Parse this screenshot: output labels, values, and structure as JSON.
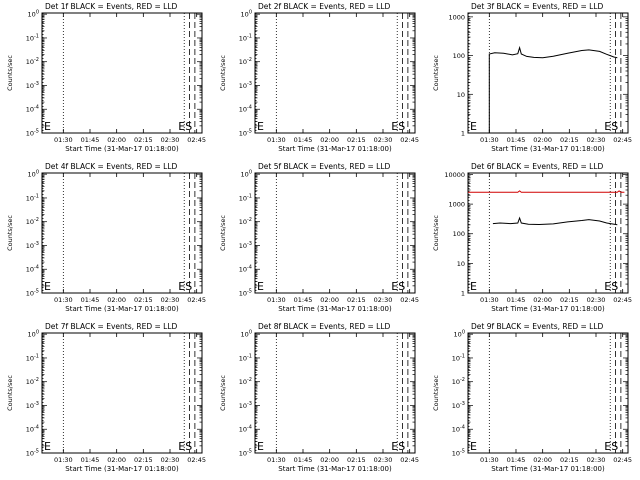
{
  "chart_data": [
    {
      "type": "line",
      "title": "Det 1f BLACK = Events, RED = LLD",
      "xlabel": "Start Time (31-Mar-17 01:18:00)",
      "ylabel": "Counts/sec",
      "yscale": "log",
      "xticks": [
        "01:30",
        "01:45",
        "02:00",
        "02:15",
        "02:30",
        "02:45"
      ],
      "yticks": [
        "10^0",
        "10^-1",
        "10^-2",
        "10^-3",
        "10^-4",
        "10^-5"
      ],
      "markers": [
        {
          "label": "E",
          "time": "01:18",
          "style": "dotted"
        },
        {
          "label": "",
          "time": "01:30",
          "style": "dotted"
        },
        {
          "label": "ES",
          "time": "02:38",
          "style": "dotted"
        },
        {
          "label": "",
          "time": "02:41",
          "style": "dashed"
        },
        {
          "label": "",
          "time": "02:44",
          "style": "dashed"
        }
      ],
      "series": []
    },
    {
      "type": "line",
      "title": "Det 2f BLACK = Events, RED = LLD",
      "xlabel": "Start Time (31-Mar-17 01:18:00)",
      "ylabel": "Counts/sec",
      "yscale": "log",
      "xticks": [
        "01:30",
        "01:45",
        "02:00",
        "02:15",
        "02:30",
        "02:45"
      ],
      "yticks": [
        "10^0",
        "10^-1",
        "10^-2",
        "10^-3",
        "10^-4",
        "10^-5"
      ],
      "markers": [
        {
          "label": "E",
          "time": "01:18",
          "style": "dotted"
        },
        {
          "label": "",
          "time": "01:30",
          "style": "dotted"
        },
        {
          "label": "ES",
          "time": "02:38",
          "style": "dotted"
        },
        {
          "label": "",
          "time": "02:41",
          "style": "dashed"
        },
        {
          "label": "",
          "time": "02:44",
          "style": "dashed"
        }
      ],
      "series": []
    },
    {
      "type": "line",
      "title": "Det 3f BLACK = Events, RED = LLD",
      "xlabel": "Start Time (31-Mar-17 01:18:00)",
      "ylabel": "Counts/sec",
      "yscale": "log",
      "xticks": [
        "01:30",
        "01:45",
        "02:00",
        "02:15",
        "02:30",
        "02:45"
      ],
      "yticks": [
        "1",
        "10",
        "100",
        "1000"
      ],
      "markers": [
        {
          "label": "E",
          "time": "01:18",
          "style": "dotted"
        },
        {
          "label": "",
          "time": "01:30",
          "style": "dotted"
        },
        {
          "label": "ES",
          "time": "02:38",
          "style": "dotted"
        },
        {
          "label": "",
          "time": "02:41",
          "style": "dashed"
        },
        {
          "label": "",
          "time": "02:44",
          "style": "dashed"
        }
      ],
      "series": [
        {
          "color": "#000000",
          "points": [
            [
              0,
              0.5
            ],
            [
              12,
              0.5
            ],
            [
              12,
              110
            ],
            [
              15,
              118
            ],
            [
              20,
              115
            ],
            [
              25,
              104
            ],
            [
              28,
              112
            ],
            [
              29,
              160
            ],
            [
              30,
              110
            ],
            [
              33,
              95
            ],
            [
              37,
              90
            ],
            [
              42,
              88
            ],
            [
              48,
              96
            ],
            [
              56,
              115
            ],
            [
              64,
              135
            ],
            [
              68,
              140
            ],
            [
              74,
              128
            ],
            [
              78,
              108
            ],
            [
              80,
              100
            ],
            [
              82,
              92
            ],
            [
              84,
              88
            ]
          ]
        }
      ]
    },
    {
      "type": "line",
      "title": "Det 4f BLACK = Events, RED = LLD",
      "xlabel": "Start Time (31-Mar-17 01:18:00)",
      "ylabel": "Counts/sec",
      "yscale": "log",
      "xticks": [
        "01:30",
        "01:45",
        "02:00",
        "02:15",
        "02:30",
        "02:45"
      ],
      "yticks": [
        "10^0",
        "10^-1",
        "10^-2",
        "10^-3",
        "10^-4",
        "10^-5"
      ],
      "markers": [
        {
          "label": "E",
          "time": "01:18",
          "style": "dotted"
        },
        {
          "label": "",
          "time": "01:30",
          "style": "dotted"
        },
        {
          "label": "ES",
          "time": "02:38",
          "style": "dotted"
        },
        {
          "label": "",
          "time": "02:41",
          "style": "dashed"
        },
        {
          "label": "",
          "time": "02:44",
          "style": "dashed"
        }
      ],
      "series": []
    },
    {
      "type": "line",
      "title": "Det 5f BLACK = Events, RED = LLD",
      "xlabel": "Start Time (31-Mar-17 01:18:00)",
      "ylabel": "Counts/sec",
      "yscale": "log",
      "xticks": [
        "01:30",
        "01:45",
        "02:00",
        "02:15",
        "02:30",
        "02:45"
      ],
      "yticks": [
        "10^0",
        "10^-1",
        "10^-2",
        "10^-3",
        "10^-4",
        "10^-5"
      ],
      "markers": [
        {
          "label": "E",
          "time": "01:18",
          "style": "dotted"
        },
        {
          "label": "",
          "time": "01:30",
          "style": "dotted"
        },
        {
          "label": "ES",
          "time": "02:38",
          "style": "dotted"
        },
        {
          "label": "",
          "time": "02:41",
          "style": "dashed"
        },
        {
          "label": "",
          "time": "02:44",
          "style": "dashed"
        }
      ],
      "series": []
    },
    {
      "type": "line",
      "title": "Det 6f BLACK = Events, RED = LLD",
      "xlabel": "Start Time (31-Mar-17 01:18:00)",
      "ylabel": "Counts/sec",
      "yscale": "log",
      "xticks": [
        "01:30",
        "01:45",
        "02:00",
        "02:15",
        "02:30",
        "02:45"
      ],
      "yticks": [
        "1",
        "10",
        "100",
        "1000",
        "10000"
      ],
      "markers": [
        {
          "label": "E",
          "time": "01:18",
          "style": "dotted"
        },
        {
          "label": "",
          "time": "01:30",
          "style": "dotted"
        },
        {
          "label": "ES",
          "time": "02:38",
          "style": "dotted"
        },
        {
          "label": "",
          "time": "02:41",
          "style": "dashed"
        },
        {
          "label": "",
          "time": "02:44",
          "style": "dashed"
        }
      ],
      "series": [
        {
          "color": "#d00000",
          "points": [
            [
              0,
              2500
            ],
            [
              28,
              2500
            ],
            [
              29,
              2800
            ],
            [
              30,
              2500
            ],
            [
              84,
              2500
            ],
            [
              85,
              2800
            ],
            [
              86,
              2500
            ],
            [
              88,
              2500
            ]
          ]
        },
        {
          "color": "#000000",
          "points": [
            [
              14,
              220
            ],
            [
              18,
              230
            ],
            [
              24,
              220
            ],
            [
              28,
              230
            ],
            [
              29,
              340
            ],
            [
              30,
              230
            ],
            [
              34,
              210
            ],
            [
              40,
              205
            ],
            [
              48,
              215
            ],
            [
              56,
              250
            ],
            [
              64,
              280
            ],
            [
              68,
              300
            ],
            [
              74,
              270
            ],
            [
              78,
              230
            ],
            [
              84,
              200
            ]
          ]
        }
      ]
    },
    {
      "type": "line",
      "title": "Det 7f BLACK = Events, RED = LLD",
      "xlabel": "Start Time (31-Mar-17 01:18:00)",
      "ylabel": "Counts/sec",
      "yscale": "log",
      "xticks": [
        "01:30",
        "01:45",
        "02:00",
        "02:15",
        "02:30",
        "02:45"
      ],
      "yticks": [
        "10^0",
        "10^-1",
        "10^-2",
        "10^-3",
        "10^-4",
        "10^-5"
      ],
      "markers": [
        {
          "label": "E",
          "time": "01:18",
          "style": "dotted"
        },
        {
          "label": "",
          "time": "01:30",
          "style": "dotted"
        },
        {
          "label": "ES",
          "time": "02:38",
          "style": "dotted"
        },
        {
          "label": "",
          "time": "02:41",
          "style": "dashed"
        },
        {
          "label": "",
          "time": "02:44",
          "style": "dashed"
        }
      ],
      "series": []
    },
    {
      "type": "line",
      "title": "Det 8f BLACK = Events, RED = LLD",
      "xlabel": "Start Time (31-Mar-17 01:18:00)",
      "ylabel": "Counts/sec",
      "yscale": "log",
      "xticks": [
        "01:30",
        "01:45",
        "02:00",
        "02:15",
        "02:30",
        "02:45"
      ],
      "yticks": [
        "10^0",
        "10^-1",
        "10^-2",
        "10^-3",
        "10^-4",
        "10^-5"
      ],
      "markers": [
        {
          "label": "E",
          "time": "01:18",
          "style": "dotted"
        },
        {
          "label": "",
          "time": "01:30",
          "style": "dotted"
        },
        {
          "label": "ES",
          "time": "02:38",
          "style": "dotted"
        },
        {
          "label": "",
          "time": "02:41",
          "style": "dashed"
        },
        {
          "label": "",
          "time": "02:44",
          "style": "dashed"
        }
      ],
      "series": []
    },
    {
      "type": "line",
      "title": "Det 9f BLACK = Events, RED = LLD",
      "xlabel": "Start Time (31-Mar-17 01:18:00)",
      "ylabel": "Counts/sec",
      "yscale": "log",
      "xticks": [
        "01:30",
        "01:45",
        "02:00",
        "02:15",
        "02:30",
        "02:45"
      ],
      "yticks": [
        "10^0",
        "10^-1",
        "10^-2",
        "10^-3",
        "10^-4",
        "10^-5"
      ],
      "markers": [
        {
          "label": "E",
          "time": "01:18",
          "style": "dotted"
        },
        {
          "label": "",
          "time": "01:30",
          "style": "dotted"
        },
        {
          "label": "ES",
          "time": "02:38",
          "style": "dotted"
        },
        {
          "label": "",
          "time": "02:41",
          "style": "dashed"
        },
        {
          "label": "",
          "time": "02:44",
          "style": "dashed"
        }
      ],
      "series": []
    }
  ]
}
